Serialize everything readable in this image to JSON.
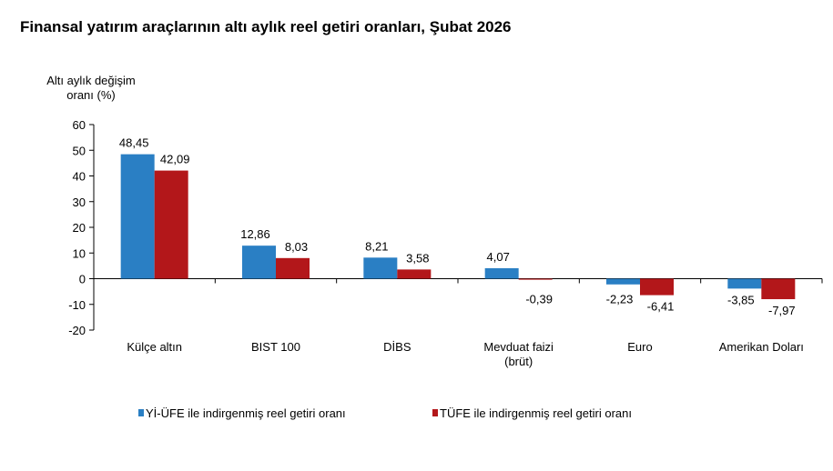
{
  "chart_data": {
    "type": "bar",
    "title": "Finansal yatırım araçlarının altı aylık reel getiri oranları, Şubat 2026",
    "ylabel": [
      "Altı aylık değişim",
      "oranı (%)"
    ],
    "xlabel": "",
    "ylim": [
      -20,
      60
    ],
    "yticks": [
      60,
      50,
      40,
      30,
      20,
      10,
      0,
      -10,
      -20
    ],
    "categories": [
      [
        "Külçe altın"
      ],
      [
        "BIST 100"
      ],
      [
        "DİBS"
      ],
      [
        "Mevduat faizi",
        "(brüt)"
      ],
      [
        "Euro"
      ],
      [
        "Amerikan Doları"
      ]
    ],
    "series": [
      {
        "name": "Yİ-ÜFE ile indirgenmiş reel getiri oranı",
        "color": "#2a7fc4",
        "values": [
          48.45,
          12.86,
          8.21,
          4.07,
          -2.23,
          -3.85
        ],
        "labels": [
          "48,45",
          "12,86",
          "8,21",
          "4,07",
          "-2,23",
          "-3,85"
        ]
      },
      {
        "name": "TÜFE ile indirgenmiş reel getiri oranı",
        "color": "#b3171a",
        "values": [
          42.09,
          8.03,
          3.58,
          -0.39,
          -6.41,
          -7.97
        ],
        "labels": [
          "42,09",
          "8,03",
          "3,58",
          "-0,39",
          "-6,41",
          "-7,97"
        ]
      }
    ],
    "grid": false,
    "legend": "bottom"
  }
}
